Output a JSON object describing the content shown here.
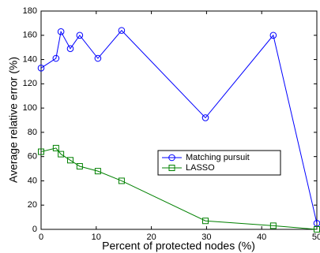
{
  "chart_data": {
    "type": "line",
    "xlabel": "Percent of protected nodes (%)",
    "ylabel": "Average relative error (%)",
    "x": [
      0,
      2.7,
      3.6,
      5.3,
      7.0,
      10.3,
      14.6,
      29.8,
      42.1,
      50
    ],
    "series": [
      {
        "name": "Matching pursuit",
        "color": "#0000ff",
        "marker": "circle",
        "values": [
          133,
          141,
          163,
          149,
          160,
          141,
          164,
          92,
          160,
          5
        ]
      },
      {
        "name": "LASSO",
        "color": "#008000",
        "marker": "square",
        "values": [
          64,
          67,
          62,
          57,
          52,
          48,
          40,
          7,
          3,
          0
        ]
      }
    ],
    "xlim": [
      0,
      50
    ],
    "xticks": [
      0,
      10,
      20,
      30,
      40,
      50
    ],
    "ylim": [
      0,
      180
    ],
    "yticks": [
      0,
      20,
      40,
      60,
      80,
      100,
      120,
      140,
      160,
      180
    ],
    "grid": false,
    "legend": "east"
  }
}
